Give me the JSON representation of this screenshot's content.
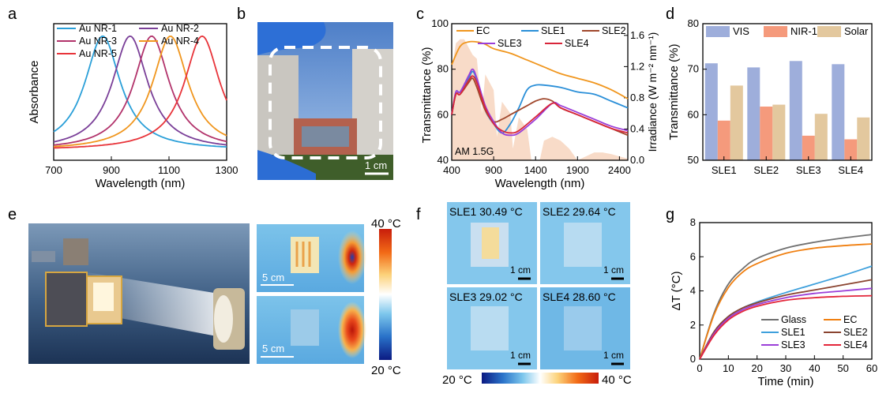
{
  "panels": {
    "a": {
      "letter": "a"
    },
    "b": {
      "letter": "b",
      "scale_label": "1 cm"
    },
    "c": {
      "letter": "c",
      "am_label": "AM 1.5G"
    },
    "d": {
      "letter": "d"
    },
    "e": {
      "letter": "e",
      "scale_label_top": "5 cm",
      "scale_label_bottom": "5 cm",
      "colorbar_max": "40 °C",
      "colorbar_min": "20 °C"
    },
    "f": {
      "letter": "f",
      "tiles": [
        {
          "label": "SLE1 30.49 °C",
          "scale": "1 cm"
        },
        {
          "label": "SLE2 29.64 °C",
          "scale": "1 cm"
        },
        {
          "label": "SLE3 29.02 °C",
          "scale": "1 cm"
        },
        {
          "label": "SLE4 28.60 °C",
          "scale": "1 cm"
        }
      ],
      "colorbar_min": "20 °C",
      "colorbar_max": "40 °C"
    },
    "g": {
      "letter": "g"
    }
  },
  "chart_data": [
    {
      "id": "a",
      "type": "line",
      "xlabel": "Wavelength (nm)",
      "ylabel": "Absorbance",
      "xlim": [
        700,
        1300
      ],
      "xticks": [
        "700",
        "900",
        "1100",
        "1300"
      ],
      "series": [
        {
          "name": "Au NR-1",
          "color": "#2a9fd8",
          "peak": 870
        },
        {
          "name": "Au NR-2",
          "color": "#7a3f98",
          "peak": 965
        },
        {
          "name": "Au NR-3",
          "color": "#b2336b",
          "peak": 1040
        },
        {
          "name": "Au NR-4",
          "color": "#f0961e",
          "peak": 1105
        },
        {
          "name": "Au NR-5",
          "color": "#e8343a",
          "peak": 1215
        }
      ]
    },
    {
      "id": "c",
      "type": "line",
      "xlabel": "Wavelength (nm)",
      "ylabel": "Transmittance (%)",
      "ylabel_right": "Irradiance (W m⁻² nm⁻¹)",
      "xlim": [
        400,
        2500
      ],
      "ylim": [
        40,
        100
      ],
      "ylim_right": [
        0,
        1.75
      ],
      "xticks": [
        "400",
        "900",
        "1400",
        "1900",
        "2400"
      ],
      "yticks": [
        "40",
        "60",
        "80",
        "100"
      ],
      "yticks_right": [
        "0.0",
        "0.4",
        "0.8",
        "1.2",
        "1.6"
      ],
      "series": [
        {
          "name": "EC",
          "color": "#f0961e",
          "x": [
            400,
            500,
            600,
            700,
            800,
            900,
            1100,
            1300,
            1500,
            1700,
            1900,
            2100,
            2300,
            2500
          ],
          "y": [
            82,
            90,
            92,
            92,
            91,
            89,
            87,
            84,
            81,
            78,
            76,
            74,
            71,
            67
          ]
        },
        {
          "name": "SLE1",
          "color": "#2a8fd8",
          "x": [
            400,
            450,
            500,
            600,
            650,
            700,
            800,
            900,
            1000,
            1100,
            1200,
            1300,
            1400,
            1500,
            1700,
            1900,
            2100,
            2300,
            2500
          ],
          "y": [
            60,
            70,
            70,
            76,
            79,
            75,
            62,
            56,
            52,
            56,
            63,
            71,
            73,
            73,
            72,
            70,
            69,
            66,
            63
          ]
        },
        {
          "name": "SLE2",
          "color": "#a0472c",
          "x": [
            400,
            450,
            500,
            600,
            650,
            700,
            800,
            900,
            1000,
            1100,
            1200,
            1300,
            1400,
            1500,
            1600,
            1700,
            1900,
            2100,
            2300,
            2500
          ],
          "y": [
            60,
            69,
            69,
            74,
            76,
            72,
            62,
            57,
            58,
            60,
            62,
            64,
            66,
            67,
            66,
            63,
            60,
            57,
            54,
            51
          ]
        },
        {
          "name": "SLE3",
          "color": "#9b3fd8",
          "x": [
            400,
            450,
            500,
            600,
            650,
            700,
            800,
            900,
            1000,
            1100,
            1200,
            1400,
            1600,
            1700,
            1900,
            2100,
            2300,
            2500
          ],
          "y": [
            60,
            70,
            70,
            77,
            80,
            76,
            64,
            57,
            52,
            51,
            52,
            58,
            65,
            64,
            61,
            58,
            55,
            53
          ]
        },
        {
          "name": "SLE4",
          "color": "#d8263a",
          "x": [
            400,
            450,
            500,
            600,
            650,
            700,
            800,
            900,
            1000,
            1100,
            1200,
            1400,
            1600,
            1700,
            1900,
            2100,
            2300,
            2500
          ],
          "y": [
            60,
            69,
            69,
            75,
            77,
            74,
            63,
            56,
            53,
            52,
            53,
            59,
            65,
            63,
            60,
            57,
            54,
            52
          ]
        }
      ],
      "irradiance": {
        "x": [
          400,
          450,
          500,
          550,
          600,
          650,
          700,
          760,
          800,
          900,
          940,
          1000,
          1100,
          1130,
          1200,
          1300,
          1350,
          1450,
          1500,
          1600,
          1700,
          1800,
          1900,
          2000,
          2100,
          2200,
          2300,
          2400,
          2500
        ],
        "y": [
          1.15,
          1.5,
          1.55,
          1.55,
          1.45,
          1.35,
          1.3,
          0.6,
          1.1,
          0.9,
          0.3,
          0.75,
          0.6,
          0.15,
          0.55,
          0.4,
          0.0,
          0.0,
          0.25,
          0.3,
          0.25,
          0.15,
          0.0,
          0.05,
          0.1,
          0.1,
          0.08,
          0.05,
          0.02
        ]
      }
    },
    {
      "id": "d",
      "type": "bar",
      "ylabel": "Transmittance (%)",
      "ylim": [
        50,
        80
      ],
      "yticks": [
        "50",
        "60",
        "70",
        "80"
      ],
      "categories": [
        "SLE1",
        "SLE2",
        "SLE3",
        "SLE4"
      ],
      "series": [
        {
          "name": "VIS",
          "color": "#9eaedb",
          "values": [
            71.3,
            70.4,
            71.8,
            71.1
          ]
        },
        {
          "name": "NIR-1",
          "color": "#f59a7c",
          "values": [
            58.7,
            61.8,
            55.4,
            54.6
          ]
        },
        {
          "name": "Solar",
          "color": "#e3c89e",
          "values": [
            66.4,
            62.2,
            60.2,
            59.4
          ]
        }
      ]
    },
    {
      "id": "g",
      "type": "line",
      "xlabel": "Time (min)",
      "ylabel": "ΔT (°C)",
      "xlim": [
        0,
        60
      ],
      "ylim": [
        0,
        8
      ],
      "xticks": [
        "0",
        "10",
        "20",
        "30",
        "40",
        "50",
        "60"
      ],
      "yticks": [
        "0",
        "2",
        "4",
        "6",
        "8"
      ],
      "series": [
        {
          "name": "Glass",
          "color": "#707070",
          "x": [
            0,
            5,
            10,
            15,
            20,
            30,
            40,
            50,
            60
          ],
          "y": [
            0,
            2.7,
            4.4,
            5.3,
            5.9,
            6.5,
            6.85,
            7.1,
            7.3
          ]
        },
        {
          "name": "EC",
          "color": "#f07f10",
          "x": [
            0,
            5,
            10,
            15,
            20,
            30,
            40,
            50,
            60
          ],
          "y": [
            0,
            2.6,
            4.2,
            5.1,
            5.6,
            6.2,
            6.5,
            6.65,
            6.75
          ]
        },
        {
          "name": "SLE1",
          "color": "#3ea0dc",
          "x": [
            0,
            5,
            10,
            15,
            20,
            30,
            40,
            50,
            60
          ],
          "y": [
            0,
            1.6,
            2.5,
            3.0,
            3.35,
            3.9,
            4.4,
            4.9,
            5.45
          ]
        },
        {
          "name": "SLE2",
          "color": "#8a4430",
          "x": [
            0,
            5,
            10,
            15,
            20,
            30,
            40,
            50,
            60
          ],
          "y": [
            0,
            1.6,
            2.5,
            3.0,
            3.3,
            3.75,
            4.05,
            4.35,
            4.65
          ]
        },
        {
          "name": "SLE3",
          "color": "#9b3fd8",
          "x": [
            0,
            5,
            10,
            15,
            20,
            30,
            40,
            50,
            60
          ],
          "y": [
            0,
            1.5,
            2.4,
            2.9,
            3.2,
            3.6,
            3.85,
            4.0,
            4.15
          ]
        },
        {
          "name": "SLE4",
          "color": "#e3263a",
          "x": [
            0,
            5,
            10,
            15,
            20,
            30,
            40,
            50,
            60
          ],
          "y": [
            0,
            1.4,
            2.3,
            2.8,
            3.1,
            3.45,
            3.6,
            3.68,
            3.72
          ]
        }
      ]
    }
  ]
}
